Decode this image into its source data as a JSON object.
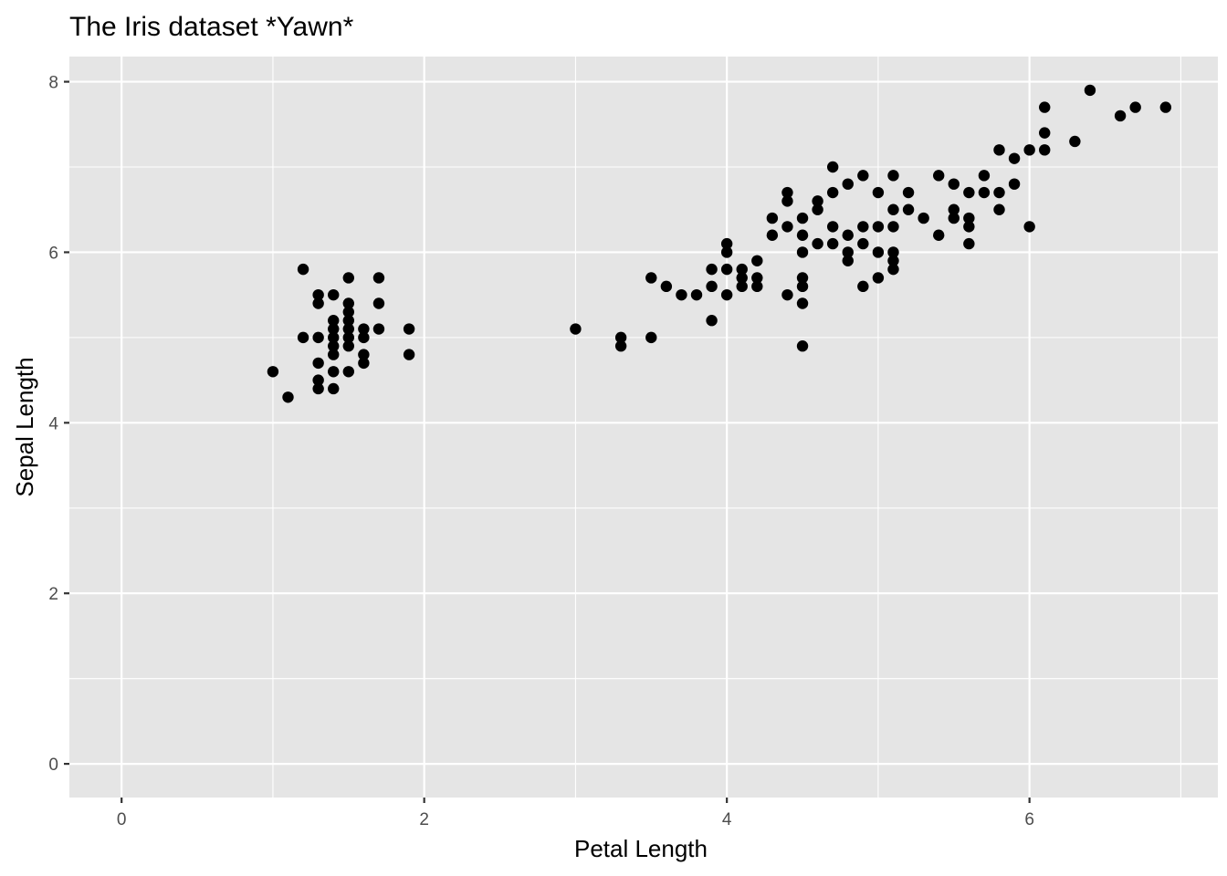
{
  "chart_data": {
    "type": "scatter",
    "title": "The Iris dataset *Yawn*",
    "xlabel": "Petal Length",
    "ylabel": "Sepal Length",
    "xlim": [
      -0.345,
      7.245
    ],
    "ylim": [
      -0.395,
      8.295
    ],
    "xticks": [
      0,
      2,
      4,
      6
    ],
    "xtick_labels": [
      "0",
      "2",
      "4",
      "6"
    ],
    "yticks": [
      0,
      2,
      4,
      6,
      8
    ],
    "ytick_labels": [
      "0",
      "2",
      "4",
      "6",
      "8"
    ],
    "x_minor": [
      1,
      3,
      5,
      7
    ],
    "y_minor": [
      1,
      3,
      5,
      7
    ],
    "grid": true,
    "legend": "none",
    "colors": {
      "panel": "#e5e5e5",
      "grid": "#ffffff",
      "point": "#000000",
      "tick_text": "#4d4d4d"
    },
    "points": [
      [
        1.0,
        4.6
      ],
      [
        1.1,
        4.3
      ],
      [
        1.2,
        5.8
      ],
      [
        1.2,
        5.0
      ],
      [
        1.3,
        5.5
      ],
      [
        1.3,
        5.4
      ],
      [
        1.3,
        5.0
      ],
      [
        1.3,
        4.7
      ],
      [
        1.3,
        4.5
      ],
      [
        1.3,
        4.4
      ],
      [
        1.4,
        5.5
      ],
      [
        1.4,
        5.2
      ],
      [
        1.4,
        5.1
      ],
      [
        1.4,
        5.0
      ],
      [
        1.4,
        4.9
      ],
      [
        1.4,
        4.8
      ],
      [
        1.4,
        4.6
      ],
      [
        1.4,
        4.4
      ],
      [
        1.5,
        5.7
      ],
      [
        1.5,
        5.4
      ],
      [
        1.5,
        5.3
      ],
      [
        1.5,
        5.2
      ],
      [
        1.5,
        5.1
      ],
      [
        1.5,
        5.0
      ],
      [
        1.5,
        4.9
      ],
      [
        1.5,
        4.6
      ],
      [
        1.6,
        5.1
      ],
      [
        1.6,
        5.0
      ],
      [
        1.6,
        4.8
      ],
      [
        1.6,
        4.7
      ],
      [
        1.7,
        5.7
      ],
      [
        1.7,
        5.4
      ],
      [
        1.7,
        5.1
      ],
      [
        1.9,
        5.1
      ],
      [
        1.9,
        4.8
      ],
      [
        3.0,
        5.1
      ],
      [
        3.3,
        5.0
      ],
      [
        3.3,
        4.9
      ],
      [
        3.5,
        5.7
      ],
      [
        3.5,
        5.0
      ],
      [
        3.6,
        5.6
      ],
      [
        3.7,
        5.5
      ],
      [
        3.8,
        5.5
      ],
      [
        3.9,
        5.8
      ],
      [
        3.9,
        5.6
      ],
      [
        3.9,
        5.2
      ],
      [
        4.0,
        6.1
      ],
      [
        4.0,
        6.0
      ],
      [
        4.0,
        5.8
      ],
      [
        4.0,
        5.5
      ],
      [
        4.1,
        5.8
      ],
      [
        4.1,
        5.7
      ],
      [
        4.1,
        5.6
      ],
      [
        4.2,
        5.9
      ],
      [
        4.2,
        5.7
      ],
      [
        4.2,
        5.6
      ],
      [
        4.3,
        6.4
      ],
      [
        4.3,
        6.2
      ],
      [
        4.4,
        6.7
      ],
      [
        4.4,
        6.6
      ],
      [
        4.4,
        6.3
      ],
      [
        4.4,
        5.5
      ],
      [
        4.5,
        6.4
      ],
      [
        4.5,
        6.2
      ],
      [
        4.5,
        6.0
      ],
      [
        4.5,
        5.7
      ],
      [
        4.5,
        5.6
      ],
      [
        4.5,
        5.4
      ],
      [
        4.5,
        4.9
      ],
      [
        4.6,
        6.6
      ],
      [
        4.6,
        6.5
      ],
      [
        4.6,
        6.1
      ],
      [
        4.7,
        7.0
      ],
      [
        4.7,
        6.7
      ],
      [
        4.7,
        6.3
      ],
      [
        4.7,
        6.1
      ],
      [
        4.8,
        6.8
      ],
      [
        4.8,
        6.2
      ],
      [
        4.8,
        6.0
      ],
      [
        4.8,
        5.9
      ],
      [
        4.9,
        6.9
      ],
      [
        4.9,
        6.3
      ],
      [
        4.9,
        6.1
      ],
      [
        4.9,
        5.6
      ],
      [
        5.0,
        6.7
      ],
      [
        5.0,
        6.3
      ],
      [
        5.0,
        6.0
      ],
      [
        5.0,
        5.7
      ],
      [
        5.1,
        6.9
      ],
      [
        5.1,
        6.5
      ],
      [
        5.1,
        6.3
      ],
      [
        5.1,
        6.0
      ],
      [
        5.1,
        5.9
      ],
      [
        5.1,
        5.8
      ],
      [
        5.2,
        6.7
      ],
      [
        5.2,
        6.5
      ],
      [
        5.3,
        6.4
      ],
      [
        5.4,
        6.9
      ],
      [
        5.4,
        6.2
      ],
      [
        5.5,
        6.8
      ],
      [
        5.5,
        6.5
      ],
      [
        5.5,
        6.4
      ],
      [
        5.6,
        6.7
      ],
      [
        5.6,
        6.4
      ],
      [
        5.6,
        6.3
      ],
      [
        5.6,
        6.1
      ],
      [
        5.7,
        6.9
      ],
      [
        5.7,
        6.7
      ],
      [
        5.8,
        7.2
      ],
      [
        5.8,
        6.7
      ],
      [
        5.8,
        6.5
      ],
      [
        5.9,
        7.1
      ],
      [
        5.9,
        6.8
      ],
      [
        6.0,
        7.2
      ],
      [
        6.0,
        6.3
      ],
      [
        6.1,
        7.7
      ],
      [
        6.1,
        7.4
      ],
      [
        6.1,
        7.2
      ],
      [
        6.3,
        7.3
      ],
      [
        6.4,
        7.9
      ],
      [
        6.6,
        7.6
      ],
      [
        6.7,
        7.7
      ],
      [
        6.9,
        7.7
      ]
    ]
  }
}
